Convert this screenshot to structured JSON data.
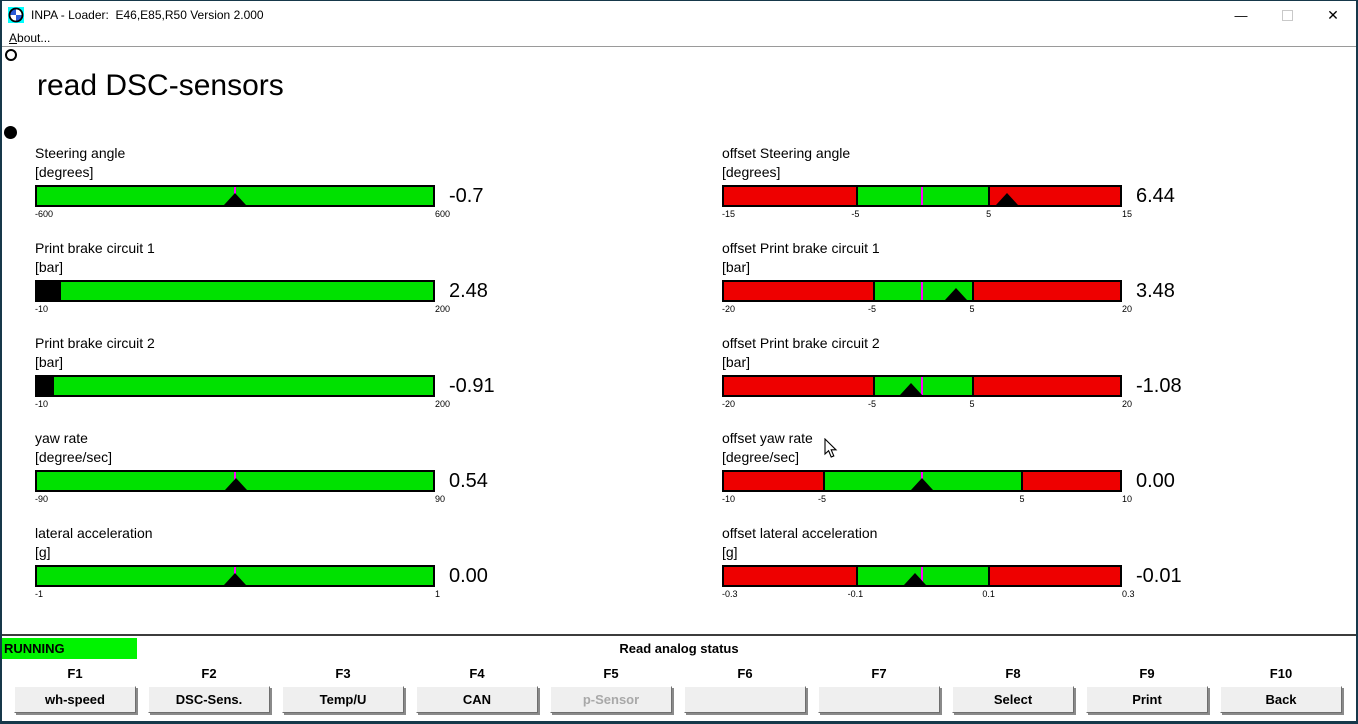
{
  "window": {
    "title": "INPA - Loader:  E46,E85,R50 Version 2.000",
    "controls": {
      "minimize": "—",
      "maximize": "",
      "close": "✕"
    }
  },
  "menu": {
    "about": "About..."
  },
  "page": {
    "title": "read DSC-sensors"
  },
  "colors": {
    "green": "#00e100",
    "red": "#ee0000",
    "running_green": "#00f300",
    "zero_line": "#ff00ff",
    "marker": "#000000"
  },
  "gauges": {
    "left": [
      {
        "name": "Steering angle",
        "unit": "[degrees]",
        "value": "-0.7",
        "min": -600,
        "max": 600,
        "marker": "triangle",
        "marker_value": -0.7,
        "zero_line": 0,
        "segments": [
          {
            "color": "green",
            "from": -600,
            "to": 600
          }
        ],
        "ticks": [
          {
            "v": -600,
            "label": "-600"
          },
          {
            "v": 600,
            "label": "600"
          }
        ]
      },
      {
        "name": "Print brake circuit 1",
        "unit": "[bar]",
        "value": "2.48",
        "min": -10,
        "max": 200,
        "marker": "fill",
        "marker_value": 2.48,
        "segments": [
          {
            "color": "green",
            "from": -10,
            "to": 200
          }
        ],
        "ticks": [
          {
            "v": -10,
            "label": "-10"
          },
          {
            "v": 200,
            "label": "200"
          }
        ]
      },
      {
        "name": "Print brake circuit 2",
        "unit": "[bar]",
        "value": "-0.91",
        "min": -10,
        "max": 200,
        "marker": "fill",
        "marker_value": -0.91,
        "segments": [
          {
            "color": "green",
            "from": -10,
            "to": 200
          }
        ],
        "ticks": [
          {
            "v": -10,
            "label": "-10"
          },
          {
            "v": 200,
            "label": "200"
          }
        ]
      },
      {
        "name": "yaw rate",
        "unit": "[degree/sec]",
        "value": "0.54",
        "min": -90,
        "max": 90,
        "marker": "triangle",
        "marker_value": 0.54,
        "zero_line": 0,
        "segments": [
          {
            "color": "green",
            "from": -90,
            "to": 90
          }
        ],
        "ticks": [
          {
            "v": -90,
            "label": "-90"
          },
          {
            "v": 90,
            "label": "90"
          }
        ]
      },
      {
        "name": "lateral acceleration",
        "unit": "[g]",
        "value": "0.00",
        "min": -1,
        "max": 1,
        "marker": "triangle",
        "marker_value": 0,
        "zero_line": 0,
        "segments": [
          {
            "color": "green",
            "from": -1,
            "to": 1
          }
        ],
        "ticks": [
          {
            "v": -1,
            "label": "-1"
          },
          {
            "v": 1,
            "label": "1"
          }
        ]
      }
    ],
    "right": [
      {
        "name": "offset Steering angle",
        "unit": "[degrees]",
        "value": "6.44",
        "min": -15,
        "max": 15,
        "marker": "triangle",
        "marker_value": 6.44,
        "zero_line": 0,
        "segments": [
          {
            "color": "red",
            "from": -15,
            "to": -5
          },
          {
            "color": "green",
            "from": -5,
            "to": 5
          },
          {
            "color": "red",
            "from": 5,
            "to": 15
          }
        ],
        "ticks": [
          {
            "v": -15,
            "label": "-15"
          },
          {
            "v": -5,
            "label": "-5"
          },
          {
            "v": 5,
            "label": "5"
          },
          {
            "v": 15,
            "label": "15"
          }
        ]
      },
      {
        "name": "offset Print brake circuit 1",
        "unit": "[bar]",
        "value": "3.48",
        "min": -20,
        "max": 20,
        "marker": "triangle",
        "marker_value": 3.48,
        "zero_line": 0,
        "segments": [
          {
            "color": "red",
            "from": -20,
            "to": -5
          },
          {
            "color": "green",
            "from": -5,
            "to": 5
          },
          {
            "color": "red",
            "from": 5,
            "to": 20
          }
        ],
        "ticks": [
          {
            "v": -20,
            "label": "-20"
          },
          {
            "v": -5,
            "label": "-5"
          },
          {
            "v": 5,
            "label": "5"
          },
          {
            "v": 20,
            "label": "20"
          }
        ]
      },
      {
        "name": "offset Print brake circuit 2",
        "unit": "[bar]",
        "value": "-1.08",
        "min": -20,
        "max": 20,
        "marker": "triangle",
        "marker_value": -1.08,
        "zero_line": 0,
        "segments": [
          {
            "color": "red",
            "from": -20,
            "to": -5
          },
          {
            "color": "green",
            "from": -5,
            "to": 5
          },
          {
            "color": "red",
            "from": 5,
            "to": 20
          }
        ],
        "ticks": [
          {
            "v": -20,
            "label": "-20"
          },
          {
            "v": -5,
            "label": "-5"
          },
          {
            "v": 5,
            "label": "5"
          },
          {
            "v": 20,
            "label": "20"
          }
        ]
      },
      {
        "name": "offset yaw rate",
        "unit": "[degree/sec]",
        "value": "0.00",
        "min": -10,
        "max": 10,
        "marker": "triangle",
        "marker_value": 0,
        "zero_line": 0,
        "segments": [
          {
            "color": "red",
            "from": -10,
            "to": -5
          },
          {
            "color": "green",
            "from": -5,
            "to": 5
          },
          {
            "color": "red",
            "from": 5,
            "to": 10
          }
        ],
        "ticks": [
          {
            "v": -10,
            "label": "-10"
          },
          {
            "v": -5,
            "label": "-5"
          },
          {
            "v": 5,
            "label": "5"
          },
          {
            "v": 10,
            "label": "10"
          }
        ]
      },
      {
        "name": "offset lateral acceleration",
        "unit": "[g]",
        "value": "-0.01",
        "min": -0.3,
        "max": 0.3,
        "marker": "triangle",
        "marker_value": -0.01,
        "zero_line": 0,
        "segments": [
          {
            "color": "red",
            "from": -0.3,
            "to": -0.1
          },
          {
            "color": "green",
            "from": -0.1,
            "to": 0.1
          },
          {
            "color": "red",
            "from": 0.1,
            "to": 0.3
          }
        ],
        "ticks": [
          {
            "v": -0.3,
            "label": "-0.3"
          },
          {
            "v": -0.1,
            "label": "-0.1"
          },
          {
            "v": 0.1,
            "label": "0.1"
          },
          {
            "v": 0.3,
            "label": "0.3"
          }
        ]
      }
    ]
  },
  "statusbar": {
    "running": "RUNNING",
    "message": "Read analog status"
  },
  "function_keys": [
    {
      "key": "F1",
      "label": "wh-speed",
      "enabled": true
    },
    {
      "key": "F2",
      "label": "DSC-Sens.",
      "enabled": true
    },
    {
      "key": "F3",
      "label": "Temp/U",
      "enabled": true
    },
    {
      "key": "F4",
      "label": "CAN",
      "enabled": true
    },
    {
      "key": "F5",
      "label": "p-Sensor",
      "enabled": false
    },
    {
      "key": "F6",
      "label": "",
      "enabled": true
    },
    {
      "key": "F7",
      "label": "",
      "enabled": true
    },
    {
      "key": "F8",
      "label": "Select",
      "enabled": true
    },
    {
      "key": "F9",
      "label": "Print",
      "enabled": true
    },
    {
      "key": "F10",
      "label": "Back",
      "enabled": true
    }
  ]
}
